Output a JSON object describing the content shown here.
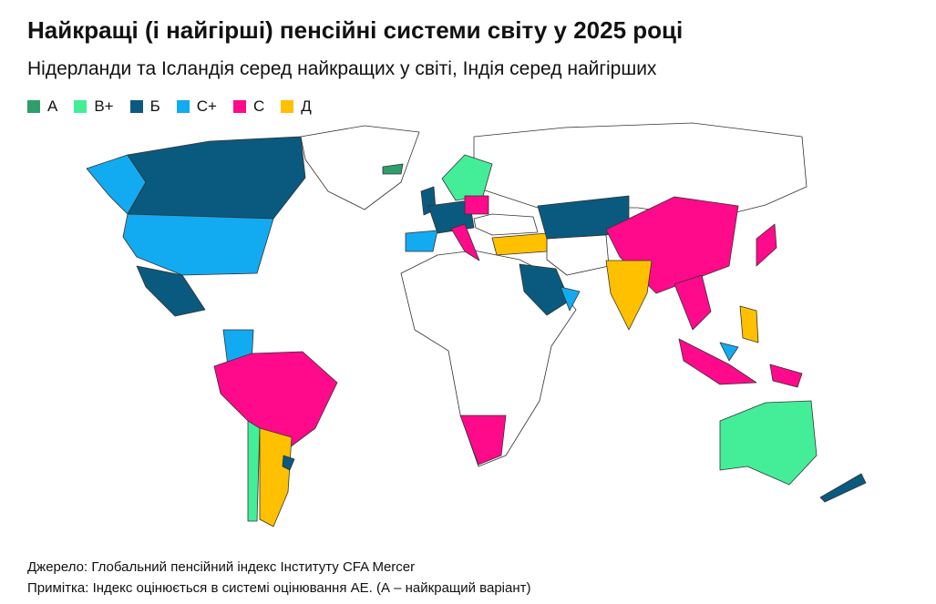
{
  "title": "Найкращі (і найгірші) пенсійні системи світу у 2025 році",
  "subtitle": "Нідерланди та Ісландія серед найкращих у світі, Індія серед найгірших",
  "legend": {
    "items": [
      {
        "label": "А",
        "color": "#2e9e6b"
      },
      {
        "label": "В+",
        "color": "#44ee99"
      },
      {
        "label": "Б",
        "color": "#0a5a80"
      },
      {
        "label": "С+",
        "color": "#12aaf0"
      },
      {
        "label": "С",
        "color": "#ff0a8a"
      },
      {
        "label": "Д",
        "color": "#ffc000"
      }
    ]
  },
  "source": "Джерело: Глобальний пенсійний індекс Інституту CFA Mercer",
  "note": "Примітка: Індекс оцінюється в системі оцінювання АЕ. (А – найкращий варіант)"
}
